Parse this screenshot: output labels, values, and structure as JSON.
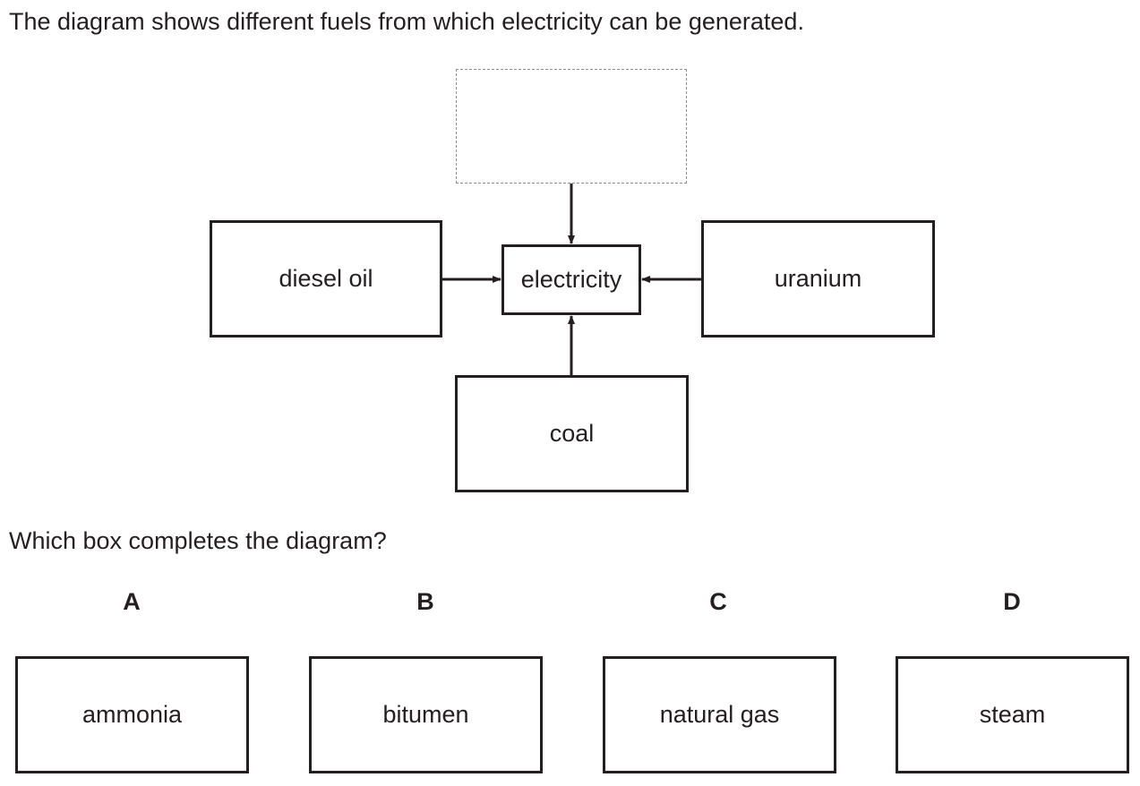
{
  "intro": "The diagram shows different fuels from which electricity can be generated.",
  "diagram": {
    "center": "electricity",
    "top": "",
    "left": "diesel oil",
    "right": "uranium",
    "bottom": "coal"
  },
  "question": "Which box completes the diagram?",
  "options": [
    {
      "letter": "A",
      "label": "ammonia"
    },
    {
      "letter": "B",
      "label": "bitumen"
    },
    {
      "letter": "C",
      "label": "natural gas"
    },
    {
      "letter": "D",
      "label": "steam"
    }
  ],
  "colors": {
    "ink": "#231f20",
    "dashed_border": "#8a8a8a"
  }
}
